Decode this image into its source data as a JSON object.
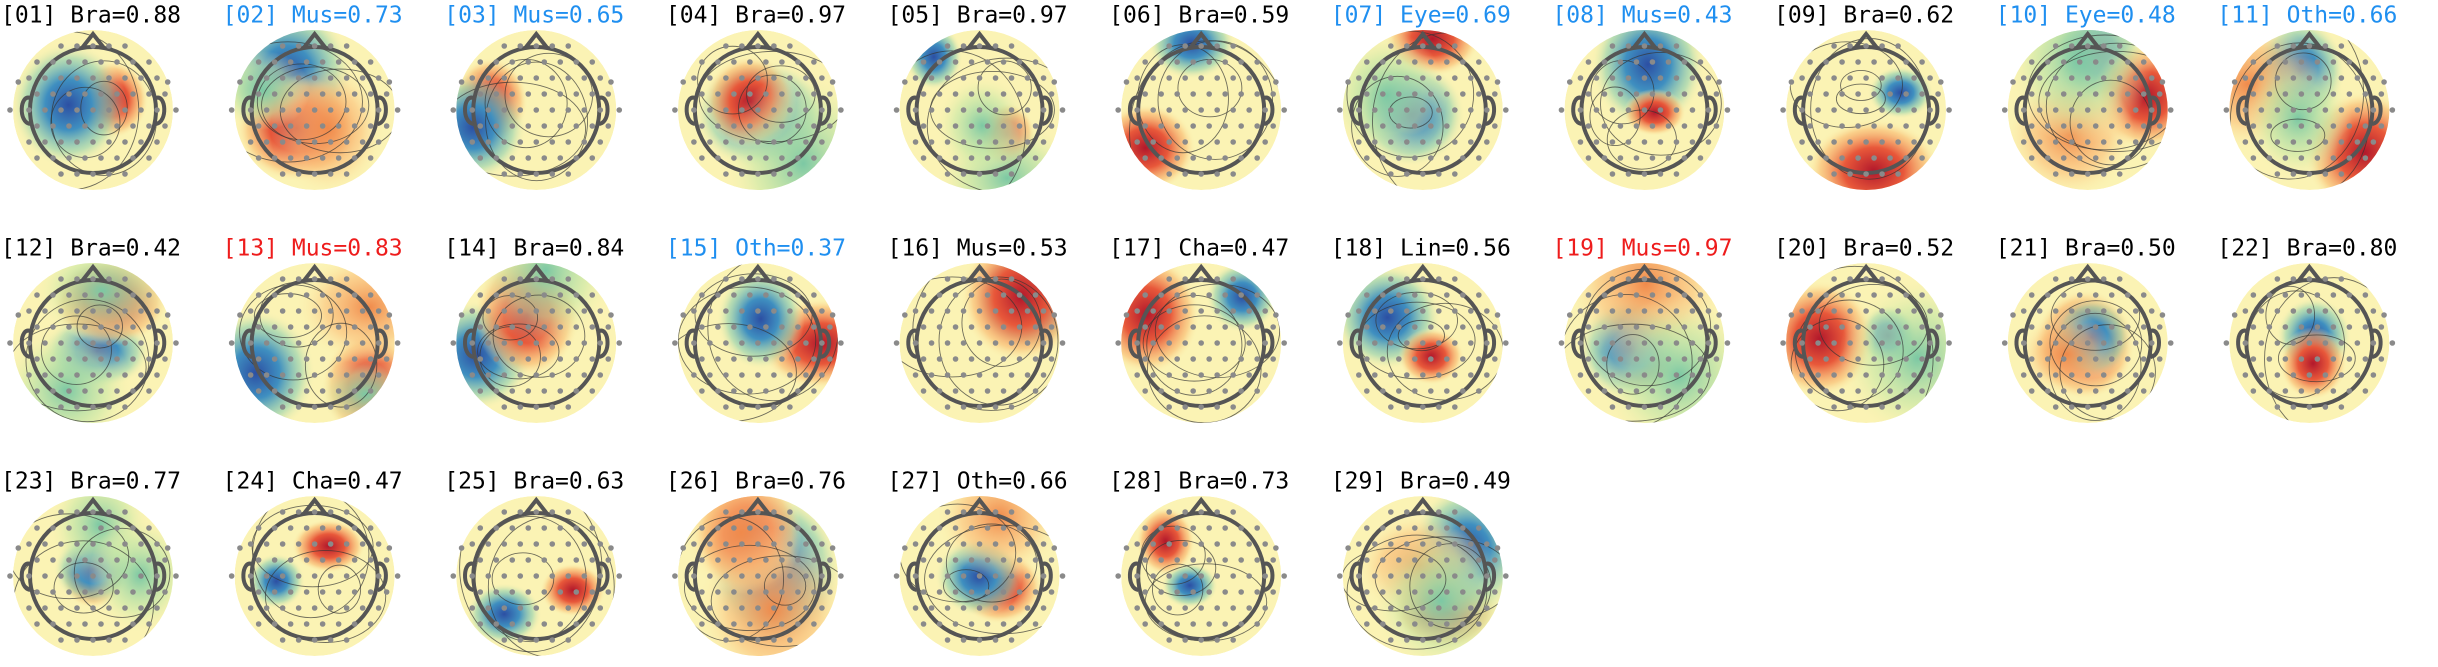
{
  "components": [
    {
      "label": "[01] Bra=0.88",
      "color": "#000000"
    },
    {
      "label": "[02] Mus=0.73",
      "color": "#1f8ff0"
    },
    {
      "label": "[03] Mus=0.65",
      "color": "#1f8ff0"
    },
    {
      "label": "[04] Bra=0.97",
      "color": "#000000"
    },
    {
      "label": "[05] Bra=0.97",
      "color": "#000000"
    },
    {
      "label": "[06] Bra=0.59",
      "color": "#000000"
    },
    {
      "label": "[07] Eye=0.69",
      "color": "#1f8ff0"
    },
    {
      "label": "[08] Mus=0.43",
      "color": "#1f8ff0"
    },
    {
      "label": "[09] Bra=0.62",
      "color": "#000000"
    },
    {
      "label": "[10] Eye=0.48",
      "color": "#1f8ff0"
    },
    {
      "label": "[11] Oth=0.66",
      "color": "#1f8ff0"
    },
    {
      "label": "[12] Bra=0.42",
      "color": "#000000"
    },
    {
      "label": "[13] Mus=0.83",
      "color": "#ee1c1c"
    },
    {
      "label": "[14] Bra=0.84",
      "color": "#000000"
    },
    {
      "label": "[15] Oth=0.37",
      "color": "#1f8ff0"
    },
    {
      "label": "[16] Mus=0.53",
      "color": "#000000"
    },
    {
      "label": "[17] Cha=0.47",
      "color": "#000000"
    },
    {
      "label": "[18] Lin=0.56",
      "color": "#000000"
    },
    {
      "label": "[19] Mus=0.97",
      "color": "#ee1c1c"
    },
    {
      "label": "[20] Bra=0.52",
      "color": "#000000"
    },
    {
      "label": "[21] Bra=0.50",
      "color": "#000000"
    },
    {
      "label": "[22] Bra=0.80",
      "color": "#000000"
    },
    {
      "label": "[23] Bra=0.77",
      "color": "#000000"
    },
    {
      "label": "[24] Cha=0.47",
      "color": "#000000"
    },
    {
      "label": "[25] Bra=0.63",
      "color": "#000000"
    },
    {
      "label": "[26] Bra=0.76",
      "color": "#000000"
    },
    {
      "label": "[27] Oth=0.66",
      "color": "#000000"
    },
    {
      "label": "[28] Bra=0.73",
      "color": "#000000"
    },
    {
      "label": "[29] Bra=0.49",
      "color": "#000000"
    }
  ]
}
